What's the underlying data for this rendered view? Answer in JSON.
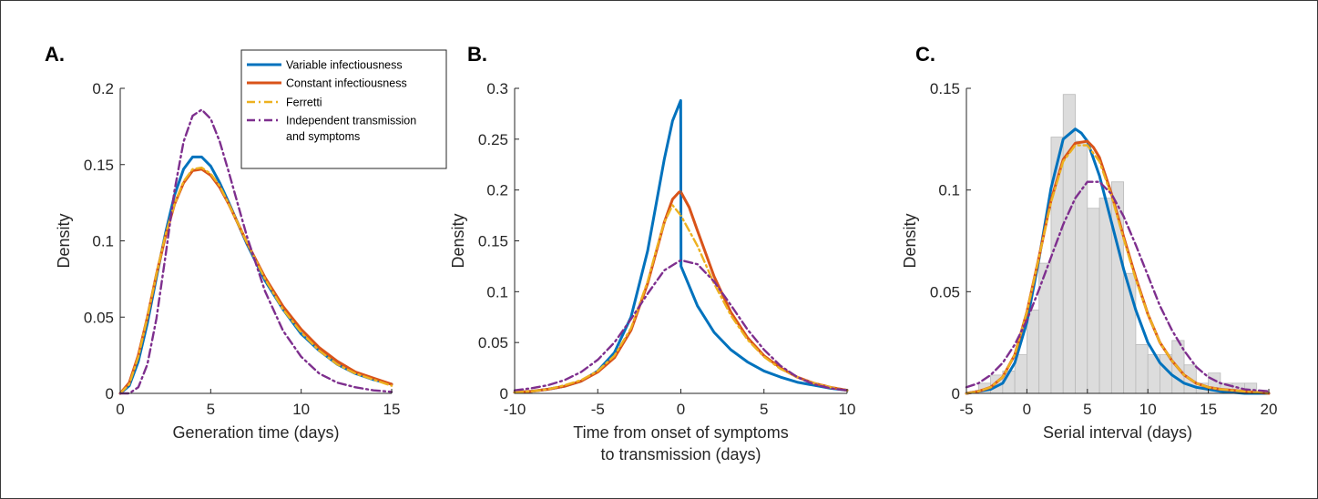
{
  "legend": [
    {
      "label": "Variable infectiousness",
      "color": "#0072BD",
      "dash": "solid"
    },
    {
      "label": "Constant infectiousness",
      "color": "#D95319",
      "dash": "solid"
    },
    {
      "label": "Ferretti",
      "color": "#EDB120",
      "dash": "dashdot"
    },
    {
      "label": "Independent transmission",
      "label2": "and symptoms",
      "color": "#7E2F8E",
      "dash": "dashdot"
    }
  ],
  "chart_data": [
    {
      "panel": "A.",
      "type": "line",
      "xlabel": "Generation time (days)",
      "ylabel": "Density",
      "xlim": [
        0,
        15
      ],
      "ylim": [
        0,
        0.2
      ],
      "xticks": [
        0,
        5,
        10,
        15
      ],
      "yticks": [
        0,
        0.05,
        0.1,
        0.15,
        0.2
      ],
      "series": [
        {
          "name": "Variable infectiousness",
          "x": [
            0,
            0.5,
            1,
            1.5,
            2,
            2.5,
            3,
            3.5,
            4,
            4.5,
            5,
            5.5,
            6,
            7,
            8,
            9,
            10,
            11,
            12,
            13,
            14,
            15
          ],
          "y": [
            0,
            0.005,
            0.021,
            0.046,
            0.076,
            0.105,
            0.13,
            0.147,
            0.155,
            0.155,
            0.149,
            0.138,
            0.125,
            0.098,
            0.074,
            0.055,
            0.039,
            0.028,
            0.019,
            0.013,
            0.009,
            0.006
          ]
        },
        {
          "name": "Constant infectiousness",
          "x": [
            0,
            0.5,
            1,
            1.5,
            2,
            2.5,
            3,
            3.5,
            4,
            4.5,
            5,
            5.5,
            6,
            7,
            8,
            9,
            10,
            11,
            12,
            13,
            14,
            15
          ],
          "y": [
            0,
            0.007,
            0.025,
            0.05,
            0.078,
            0.103,
            0.124,
            0.138,
            0.146,
            0.147,
            0.143,
            0.135,
            0.124,
            0.099,
            0.076,
            0.057,
            0.042,
            0.03,
            0.021,
            0.014,
            0.01,
            0.006
          ]
        },
        {
          "name": "Ferretti",
          "x": [
            0,
            0.5,
            1,
            1.5,
            2,
            2.5,
            3,
            3.5,
            4,
            4.5,
            5,
            5.5,
            6,
            7,
            8,
            9,
            10,
            11,
            12,
            13,
            14,
            15
          ],
          "y": [
            0,
            0.006,
            0.024,
            0.05,
            0.078,
            0.104,
            0.124,
            0.139,
            0.147,
            0.148,
            0.144,
            0.136,
            0.124,
            0.099,
            0.075,
            0.055,
            0.04,
            0.028,
            0.019,
            0.013,
            0.009,
            0.005
          ]
        },
        {
          "name": "Independent transmission and symptoms",
          "x": [
            0,
            0.5,
            1,
            1.5,
            2,
            2.5,
            3,
            3.5,
            4,
            4.5,
            5,
            5.5,
            6,
            7,
            8,
            9,
            10,
            11,
            12,
            13,
            14,
            15
          ],
          "y": [
            0,
            0,
            0.004,
            0.019,
            0.049,
            0.09,
            0.133,
            0.165,
            0.182,
            0.186,
            0.18,
            0.165,
            0.145,
            0.103,
            0.067,
            0.041,
            0.024,
            0.013,
            0.007,
            0.004,
            0.002,
            0.001
          ]
        }
      ]
    },
    {
      "panel": "B.",
      "type": "line",
      "xlabel": "Time from onset of symptoms",
      "xlabel2": "to transmission (days)",
      "ylabel": "Density",
      "xlim": [
        -10,
        10
      ],
      "ylim": [
        0,
        0.3
      ],
      "xticks": [
        -10,
        -5,
        0,
        5,
        10
      ],
      "yticks": [
        0,
        0.05,
        0.1,
        0.15,
        0.2,
        0.25,
        0.3
      ],
      "vline": {
        "x": 0,
        "y0": 0.125,
        "y1": 0.288
      },
      "series": [
        {
          "name": "Variable infectiousness",
          "x": [
            -10,
            -9,
            -8,
            -7,
            -6,
            -5,
            -4,
            -3,
            -2,
            -1.5,
            -1,
            -0.5,
            -0.01,
            0.01,
            1,
            2,
            3,
            4,
            5,
            6,
            7,
            8,
            9,
            10
          ],
          "y": [
            0.001,
            0.002,
            0.004,
            0.007,
            0.012,
            0.022,
            0.04,
            0.075,
            0.14,
            0.185,
            0.23,
            0.268,
            0.288,
            0.125,
            0.086,
            0.06,
            0.043,
            0.031,
            0.022,
            0.016,
            0.011,
            0.008,
            0.005,
            0.003
          ]
        },
        {
          "name": "Constant infectiousness",
          "x": [
            -10,
            -9,
            -8,
            -7,
            -6,
            -5,
            -4,
            -3,
            -2,
            -1.5,
            -1,
            -0.5,
            -0.1,
            0,
            0.5,
            1,
            2,
            3,
            4,
            5,
            6,
            7,
            8,
            9,
            10
          ],
          "y": [
            0.001,
            0.002,
            0.004,
            0.007,
            0.012,
            0.021,
            0.035,
            0.062,
            0.108,
            0.138,
            0.168,
            0.191,
            0.198,
            0.198,
            0.183,
            0.16,
            0.115,
            0.08,
            0.055,
            0.037,
            0.025,
            0.016,
            0.01,
            0.006,
            0.003
          ]
        },
        {
          "name": "Ferretti",
          "x": [
            -10,
            -9,
            -8,
            -7,
            -6,
            -5,
            -4,
            -3,
            -2,
            -1.5,
            -1,
            -0.5,
            0,
            0.5,
            1,
            2,
            3,
            4,
            5,
            6,
            7,
            8,
            9,
            10
          ],
          "y": [
            0.001,
            0.002,
            0.004,
            0.008,
            0.013,
            0.022,
            0.037,
            0.064,
            0.11,
            0.14,
            0.168,
            0.185,
            0.175,
            0.16,
            0.145,
            0.108,
            0.077,
            0.053,
            0.036,
            0.024,
            0.016,
            0.01,
            0.006,
            0.003
          ]
        },
        {
          "name": "Independent transmission and symptoms",
          "x": [
            -10,
            -9,
            -8,
            -7,
            -6,
            -5,
            -4,
            -3,
            -2,
            -1,
            0,
            1,
            2,
            3,
            4,
            5,
            6,
            7,
            8,
            9,
            10
          ],
          "y": [
            0.003,
            0.005,
            0.008,
            0.013,
            0.021,
            0.033,
            0.05,
            0.073,
            0.098,
            0.121,
            0.131,
            0.127,
            0.11,
            0.087,
            0.063,
            0.043,
            0.027,
            0.016,
            0.009,
            0.005,
            0.003
          ]
        }
      ]
    },
    {
      "panel": "C.",
      "type": "line",
      "xlabel": "Serial interval (days)",
      "ylabel": "Density",
      "xlim": [
        -5,
        20
      ],
      "ylim": [
        0,
        0.15
      ],
      "xticks": [
        -5,
        0,
        5,
        10,
        15,
        20
      ],
      "yticks": [
        0,
        0.05,
        0.1,
        0.15
      ],
      "histogram": {
        "bin_width": 1,
        "bins": [
          {
            "x0": -4,
            "y": 0.005
          },
          {
            "x0": -3,
            "y": 0.009
          },
          {
            "x0": -2,
            "y": 0.011
          },
          {
            "x0": -1,
            "y": 0.019
          },
          {
            "x0": 0,
            "y": 0.041
          },
          {
            "x0": 1,
            "y": 0.064
          },
          {
            "x0": 2,
            "y": 0.126
          },
          {
            "x0": 3,
            "y": 0.147
          },
          {
            "x0": 4,
            "y": 0.124
          },
          {
            "x0": 5,
            "y": 0.091
          },
          {
            "x0": 6,
            "y": 0.096
          },
          {
            "x0": 7,
            "y": 0.104
          },
          {
            "x0": 8,
            "y": 0.059
          },
          {
            "x0": 9,
            "y": 0.024
          },
          {
            "x0": 10,
            "y": 0.019
          },
          {
            "x0": 11,
            "y": 0.019
          },
          {
            "x0": 12,
            "y": 0.026
          },
          {
            "x0": 13,
            "y": 0.014
          },
          {
            "x0": 14,
            "y": 0.005
          },
          {
            "x0": 15,
            "y": 0.01
          },
          {
            "x0": 16,
            "y": 0.005
          },
          {
            "x0": 17,
            "y": 0.005
          },
          {
            "x0": 18,
            "y": 0.005
          }
        ]
      },
      "series": [
        {
          "name": "Variable infectiousness",
          "x": [
            -5,
            -4,
            -3,
            -2,
            -1,
            0,
            1,
            2,
            3,
            4,
            4.5,
            5,
            6,
            7,
            8,
            9,
            10,
            11,
            12,
            13,
            14,
            15,
            16,
            18,
            20
          ],
          "y": [
            0,
            0.001,
            0.002,
            0.005,
            0.015,
            0.035,
            0.066,
            0.101,
            0.125,
            0.13,
            0.128,
            0.124,
            0.107,
            0.084,
            0.061,
            0.041,
            0.025,
            0.015,
            0.009,
            0.005,
            0.003,
            0.002,
            0.001,
            0,
            0
          ]
        },
        {
          "name": "Constant infectiousness",
          "x": [
            -5,
            -4,
            -3,
            -2,
            -1,
            0,
            1,
            2,
            3,
            4,
            5,
            5.5,
            6,
            7,
            8,
            9,
            10,
            11,
            12,
            13,
            14,
            15,
            16,
            18,
            20
          ],
          "y": [
            0,
            0.001,
            0.003,
            0.008,
            0.019,
            0.04,
            0.067,
            0.095,
            0.115,
            0.123,
            0.124,
            0.121,
            0.116,
            0.098,
            0.077,
            0.057,
            0.039,
            0.025,
            0.016,
            0.009,
            0.005,
            0.003,
            0.002,
            0.001,
            0
          ]
        },
        {
          "name": "Ferretti",
          "x": [
            -5,
            -4,
            -3,
            -2,
            -1,
            0,
            1,
            2,
            3,
            4,
            5,
            6,
            7,
            8,
            9,
            10,
            11,
            12,
            13,
            14,
            15,
            16,
            18,
            20
          ],
          "y": [
            0,
            0.001,
            0.003,
            0.008,
            0.019,
            0.04,
            0.067,
            0.094,
            0.114,
            0.122,
            0.122,
            0.114,
            0.097,
            0.076,
            0.056,
            0.039,
            0.025,
            0.016,
            0.009,
            0.005,
            0.003,
            0.002,
            0.001,
            0
          ]
        },
        {
          "name": "Independent transmission and symptoms",
          "x": [
            -5,
            -4,
            -3,
            -2,
            -1,
            0,
            1,
            2,
            3,
            4,
            5,
            6,
            7,
            8,
            9,
            10,
            11,
            12,
            13,
            14,
            15,
            16,
            18,
            20
          ],
          "y": [
            0.003,
            0.005,
            0.009,
            0.015,
            0.024,
            0.036,
            0.051,
            0.067,
            0.083,
            0.096,
            0.104,
            0.104,
            0.098,
            0.087,
            0.073,
            0.058,
            0.043,
            0.031,
            0.021,
            0.013,
            0.008,
            0.005,
            0.002,
            0.001
          ]
        }
      ]
    }
  ]
}
